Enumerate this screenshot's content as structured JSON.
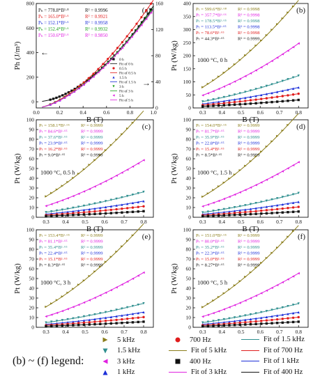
{
  "colors": {
    "5k": "#8b7d1a",
    "1.5k": "#2f8f8f",
    "700": "#e01c1c",
    "3k": "#e020e0",
    "1k": "#1c2fd8",
    "400": "#111111",
    "fit5k": "#8b7d1a",
    "fit1.5k": "#2f8f8f",
    "fit700": "#e01c1c",
    "fit3k": "#e020e0",
    "fit1k": "#1c2fd8",
    "fit400": "#111111"
  },
  "legend_title": "(b) ~ (f) legend:",
  "legend_items": [
    {
      "key": "5k",
      "label": "5 kHz",
      "marker": "tri-right"
    },
    {
      "key": "1.5k",
      "label": "1.5 kHz",
      "marker": "tri-down"
    },
    {
      "key": "700",
      "label": "700 Hz",
      "marker": "circle"
    },
    {
      "key": "fit5k",
      "label": "Fit of  5 kHz",
      "marker": "line"
    },
    {
      "key": "fit1.5k",
      "label": "Fit of  1.5 kHz",
      "marker": "line"
    },
    {
      "key": "fit700",
      "label": "Fit of  700 Hz",
      "marker": "line"
    },
    {
      "key": "3k",
      "label": "3 kHz",
      "marker": "tri-left"
    },
    {
      "key": "1k",
      "label": "1 kHz",
      "marker": "tri-up"
    },
    {
      "key": "400",
      "label": "400 Hz",
      "marker": "square"
    },
    {
      "key": "fit3k",
      "label": "Fit of  3 kHz",
      "marker": "line"
    },
    {
      "key": "fit1k",
      "label": "Fit of  1 kHz",
      "marker": "line"
    },
    {
      "key": "fit400",
      "label": "Fit of  400 Hz",
      "marker": "line"
    }
  ],
  "chart_data": [
    {
      "panel": "(a)",
      "type": "scatter",
      "xlabel": "B (T)",
      "ylabel": "Ph (J/m³)",
      "xlim": [
        0.0,
        1.0
      ],
      "xticks": [
        "0.0",
        "0.2",
        "0.4",
        "0.6",
        "0.8",
        "1.0"
      ],
      "ylim": [
        -50,
        800
      ],
      "yticks": [
        "0",
        "200",
        "400",
        "600",
        "800"
      ],
      "y2lim": [
        0,
        160
      ],
      "y2ticks": [
        "0",
        "40",
        "80",
        "120",
        "160"
      ],
      "arrow_left_label": "←",
      "arrow_right_label": "→",
      "equations": [
        {
          "text": "Pₕ = 778.8*B¹·⁸",
          "r2": "R² = 0.9996",
          "color": "#111111"
        },
        {
          "text": "Pₕ = 165.0*B¹·⁶",
          "r2": "R² = 0.9921",
          "color": "#e01c1c"
        },
        {
          "text": "Pₕ = 152.1*B¹·⁶",
          "r2": "R² = 0.9958",
          "color": "#1c2fd8"
        },
        {
          "text": "Pₕ = 152.4*B¹·⁶",
          "r2": "R² = 0.9932",
          "color": "#1aa01a"
        },
        {
          "text": "Pₕ = 150.6*B¹·⁶",
          "r2": "R² = 0.9850",
          "color": "#e020e0"
        }
      ],
      "legend": [
        "0 h",
        "Fit of 0 h",
        "0.5 h",
        "Fit of 0.5 h",
        "1.5 h",
        "Fit of 1.5 h",
        "3 h",
        "Fit of 3 h",
        "5 h",
        "Fit of 5 h"
      ],
      "series": [
        {
          "name": "0 h",
          "axis": "left",
          "coef": 778.8,
          "exp": 1.8,
          "color": "#111111",
          "marker": "square"
        },
        {
          "name": "0.5 h",
          "axis": "right",
          "coef": 165.0,
          "exp": 1.6,
          "color": "#e01c1c",
          "marker": "circle"
        },
        {
          "name": "1.5 h",
          "axis": "right",
          "coef": 152.1,
          "exp": 1.6,
          "color": "#1c2fd8",
          "marker": "tri-up"
        },
        {
          "name": "3 h",
          "axis": "right",
          "coef": 152.4,
          "exp": 1.6,
          "color": "#1aa01a",
          "marker": "tri-down"
        },
        {
          "name": "5 h",
          "axis": "right",
          "coef": 150.6,
          "exp": 1.6,
          "color": "#e020e0",
          "marker": "tri-left"
        }
      ]
    },
    {
      "panel": "(b)",
      "type": "line",
      "condition": "1000 °C, 0 h",
      "xlabel": "B (T)",
      "ylabel": "Pt (W/kg)",
      "xlim": [
        0.25,
        0.85
      ],
      "xticks": [
        "0.3",
        "0.4",
        "0.5",
        "0.6",
        "0.7",
        "0.8"
      ],
      "ylim": [
        0,
        400
      ],
      "yticks": [
        "0",
        "50",
        "100",
        "150",
        "200",
        "250",
        "300",
        "350",
        "400"
      ],
      "series": [
        {
          "key": "5k",
          "name": "5 kHz",
          "coef": 599.6,
          "exp": 1.68,
          "eq": "Pₜ = 599.6*B¹·⁶⁸",
          "r2": "R² = 0.9998"
        },
        {
          "key": "3k",
          "name": "3 kHz",
          "coef": 357.7,
          "exp": 1.66,
          "eq": "Pₜ = 357.7*B¹·⁶⁶",
          "r2": "R² = 0.9998"
        },
        {
          "key": "1.5k",
          "name": "1.5 kHz",
          "coef": 178.5,
          "exp": 1.65,
          "eq": "Pₜ = 178.5*B¹·⁶⁵",
          "r2": "R² = 0.9998"
        },
        {
          "key": "1k",
          "name": "1 kHz",
          "coef": 113.5,
          "exp": 1.65,
          "eq": "Pₜ = 113.5*B¹·⁶⁵",
          "r2": "R² = 0.9998"
        },
        {
          "key": "700",
          "name": "700 Hz",
          "coef": 78.6,
          "exp": 1.65,
          "eq": "Pₜ = 78.6*B¹·⁶⁵",
          "r2": "R² = 0.9998"
        },
        {
          "key": "400",
          "name": "400 Hz",
          "coef": 44.3,
          "exp": 1.65,
          "eq": "Pₜ = 44.3*B¹·⁶⁵",
          "r2": "R² = 0.9999"
        }
      ]
    },
    {
      "panel": "(c)",
      "type": "line",
      "condition": "1000 °C, 0.5 h",
      "xlabel": "B (T)",
      "ylabel": "Pt (W/kg)",
      "xlim": [
        0.25,
        0.85
      ],
      "xticks": [
        "0.3",
        "0.4",
        "0.5",
        "0.6",
        "0.7",
        "0.8"
      ],
      "ylim": [
        0,
        100
      ],
      "yticks": [
        "0",
        "10",
        "20",
        "30",
        "40",
        "50",
        "60",
        "70",
        "80",
        "90",
        "100"
      ],
      "series": [
        {
          "key": "5k",
          "name": "5 kHz",
          "coef": 158.1,
          "exp": 1.66,
          "eq": "Pₜ = 158.1*B¹·⁶⁶",
          "r2": "R² = 0.9999"
        },
        {
          "key": "3k",
          "name": "3 kHz",
          "coef": 84.6,
          "exp": 1.65,
          "eq": "Pₜ = 84.6*B¹·⁶⁵",
          "r2": "R² = 0.9999"
        },
        {
          "key": "1.5k",
          "name": "1.5 kHz",
          "coef": 37.6,
          "exp": 1.65,
          "eq": "Pₜ = 37.6*B¹·⁶⁵",
          "r2": "R² = 0.9999"
        },
        {
          "key": "1k",
          "name": "1 kHz",
          "coef": 23.9,
          "exp": 1.65,
          "eq": "Pₜ = 23.9*B¹·⁶⁵",
          "r2": "R² = 0.9999"
        },
        {
          "key": "700",
          "name": "700 Hz",
          "coef": 16.2,
          "exp": 1.65,
          "eq": "Pₜ = 16.2*B¹·⁶⁵",
          "r2": "R² = 0.9999"
        },
        {
          "key": "400",
          "name": "400 Hz",
          "coef": 9.0,
          "exp": 1.65,
          "eq": "Pₜ = 9.0*B¹·⁶⁵",
          "r2": "R² = 0.9999"
        }
      ]
    },
    {
      "panel": "(d)",
      "type": "line",
      "condition": "1000 °C, 1.5 h",
      "xlabel": "B (T)",
      "ylabel": "Pt (W/kg)",
      "xlim": [
        0.25,
        0.85
      ],
      "xticks": [
        "0.3",
        "0.4",
        "0.5",
        "0.6",
        "0.7",
        "0.8"
      ],
      "ylim": [
        0,
        100
      ],
      "yticks": [
        "0",
        "10",
        "20",
        "30",
        "40",
        "50",
        "60",
        "70",
        "80",
        "90",
        "100"
      ],
      "series": [
        {
          "key": "5k",
          "name": "5 kHz",
          "coef": 154.0,
          "exp": 1.65,
          "eq": "Pₜ = 154.0*B¹·⁶⁵",
          "r2": "R² = 0.9999"
        },
        {
          "key": "3k",
          "name": "3 kHz",
          "coef": 81.7,
          "exp": 1.65,
          "eq": "Pₜ = 81.7*B¹·⁶⁵",
          "r2": "R² = 0.9999"
        },
        {
          "key": "1.5k",
          "name": "1.5 kHz",
          "coef": 35.9,
          "exp": 1.65,
          "eq": "Pₜ = 35.9*B¹·⁶⁵",
          "r2": "R² = 0.9999"
        },
        {
          "key": "1k",
          "name": "1 kHz",
          "coef": 22.8,
          "exp": 1.65,
          "eq": "Pₜ = 22.8*B¹·⁶⁵",
          "r2": "R² = 0.9999"
        },
        {
          "key": "700",
          "name": "700 Hz",
          "coef": 15.4,
          "exp": 1.65,
          "eq": "Pₜ = 15.4*B¹·⁶⁵",
          "r2": "R² = 0.9999"
        },
        {
          "key": "400",
          "name": "400 Hz",
          "coef": 8.5,
          "exp": 1.65,
          "eq": "Pₜ = 8.5*B¹·⁶⁵",
          "r2": "R² = 0.9999"
        }
      ]
    },
    {
      "panel": "(e)",
      "type": "line",
      "condition": "1000 °C, 3 h",
      "xlabel": "B (T)",
      "ylabel": "Pt (W/kg)",
      "xlim": [
        0.25,
        0.85
      ],
      "xticks": [
        "0.3",
        "0.4",
        "0.5",
        "0.6",
        "0.7",
        "0.8"
      ],
      "ylim": [
        0,
        100
      ],
      "yticks": [
        "0",
        "10",
        "20",
        "30",
        "40",
        "50",
        "60",
        "70",
        "80",
        "90",
        "100"
      ],
      "series": [
        {
          "key": "5k",
          "name": "5 kHz",
          "coef": 153.4,
          "exp": 1.65,
          "eq": "Pₜ = 153.4*B¹·⁶⁵",
          "r2": "R² = 0.9999"
        },
        {
          "key": "3k",
          "name": "3 kHz",
          "coef": 81.1,
          "exp": 1.65,
          "eq": "Pₜ = 81.1*B¹·⁶⁵",
          "r2": "R² = 0.9999"
        },
        {
          "key": "1.5k",
          "name": "1.5 kHz",
          "coef": 35.4,
          "exp": 1.65,
          "eq": "Pₜ = 35.4*B¹·⁶⁵",
          "r2": "R² = 0.9999"
        },
        {
          "key": "1k",
          "name": "1 kHz",
          "coef": 22.4,
          "exp": 1.65,
          "eq": "Pₜ = 22.4*B¹·⁶⁵",
          "r2": "R² = 0.9999"
        },
        {
          "key": "700",
          "name": "700 Hz",
          "coef": 15.1,
          "exp": 1.65,
          "eq": "Pₜ = 15.1*B¹·⁶⁵",
          "r2": "R² = 0.9999"
        },
        {
          "key": "400",
          "name": "400 Hz",
          "coef": 8.3,
          "exp": 1.65,
          "eq": "Pₜ = 8.3*B¹·⁶⁵",
          "r2": "R² = 0.9999"
        }
      ]
    },
    {
      "panel": "(f)",
      "type": "line",
      "condition": "1000 °C, 5 h",
      "xlabel": "B (T)",
      "ylabel": "Pt (W/kg)",
      "xlim": [
        0.25,
        0.85
      ],
      "xticks": [
        "0.3",
        "0.4",
        "0.5",
        "0.6",
        "0.7",
        "0.8"
      ],
      "ylim": [
        0,
        100
      ],
      "yticks": [
        "0",
        "10",
        "20",
        "30",
        "40",
        "50",
        "60",
        "70",
        "80",
        "90",
        "100"
      ],
      "series": [
        {
          "key": "5k",
          "name": "5 kHz",
          "coef": 151.0,
          "exp": 1.65,
          "eq": "Pₜ = 151.0*B¹·⁶⁵",
          "r2": "R² = 0.9999"
        },
        {
          "key": "3k",
          "name": "3 kHz",
          "coef": 80.0,
          "exp": 1.65,
          "eq": "Pₜ = 80.0*B¹·⁶⁵",
          "r2": "R² = 0.9999"
        },
        {
          "key": "1.5k",
          "name": "1.5 kHz",
          "coef": 35.2,
          "exp": 1.65,
          "eq": "Pₜ = 35.2*B¹·⁶⁵",
          "r2": "R² = 0.9999"
        },
        {
          "key": "1k",
          "name": "1 kHz",
          "coef": 22.3,
          "exp": 1.65,
          "eq": "Pₜ = 22.3*B¹·⁶⁵",
          "r2": "R² = 0.9999"
        },
        {
          "key": "700",
          "name": "700 Hz",
          "coef": 15.0,
          "exp": 1.65,
          "eq": "Pₜ = 15.0*B¹·⁶⁵",
          "r2": "R² = 0.9999"
        },
        {
          "key": "400",
          "name": "400 Hz",
          "coef": 8.27,
          "exp": 1.65,
          "eq": "Pₜ = 8.27*B¹·⁶⁵",
          "r2": "R² = 0.9999"
        }
      ]
    }
  ]
}
